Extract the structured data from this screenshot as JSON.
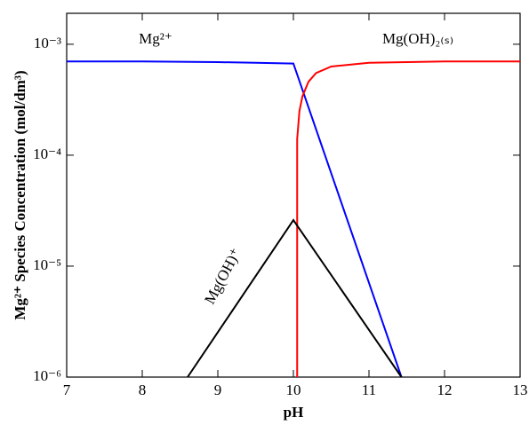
{
  "chart_data": {
    "type": "line",
    "xlabel": "pH",
    "ylabel": "Mg²⁺ Species Concentration (mol/dm³)",
    "xlim": [
      7,
      13
    ],
    "xticks": [
      7,
      8,
      9,
      10,
      11,
      12,
      13
    ],
    "yscale": "log",
    "ylim": [
      1e-06,
      0.0019
    ],
    "yticks": [
      {
        "value": 1e-06,
        "label": "10⁻⁶"
      },
      {
        "value": 1e-05,
        "label": "10⁻⁵"
      },
      {
        "value": 0.0001,
        "label": "10⁻⁴"
      },
      {
        "value": 0.001,
        "label": "10⁻³"
      }
    ],
    "series": [
      {
        "name": "Mg²⁺",
        "color": "#0000ff",
        "x": [
          7,
          8,
          9,
          9.5,
          10,
          11.43
        ],
        "values": [
          0.0007,
          0.0007,
          0.00069,
          0.00068,
          0.00067,
          1e-06
        ]
      },
      {
        "name": "Mg(OH)₂₍ₛ₎",
        "color": "#ff0000",
        "x": [
          10.05,
          10.05,
          10.08,
          10.12,
          10.2,
          10.3,
          10.5,
          11,
          12,
          13
        ],
        "values": [
          1e-06,
          0.00014,
          0.00025,
          0.00034,
          0.00046,
          0.00055,
          0.00063,
          0.00068,
          0.0007,
          0.0007
        ]
      },
      {
        "name": "Mg(OH)⁺",
        "color": "#000000",
        "x": [
          8.6,
          10,
          11.43
        ],
        "values": [
          1e-06,
          2.6e-05,
          1e-06
        ]
      }
    ]
  }
}
